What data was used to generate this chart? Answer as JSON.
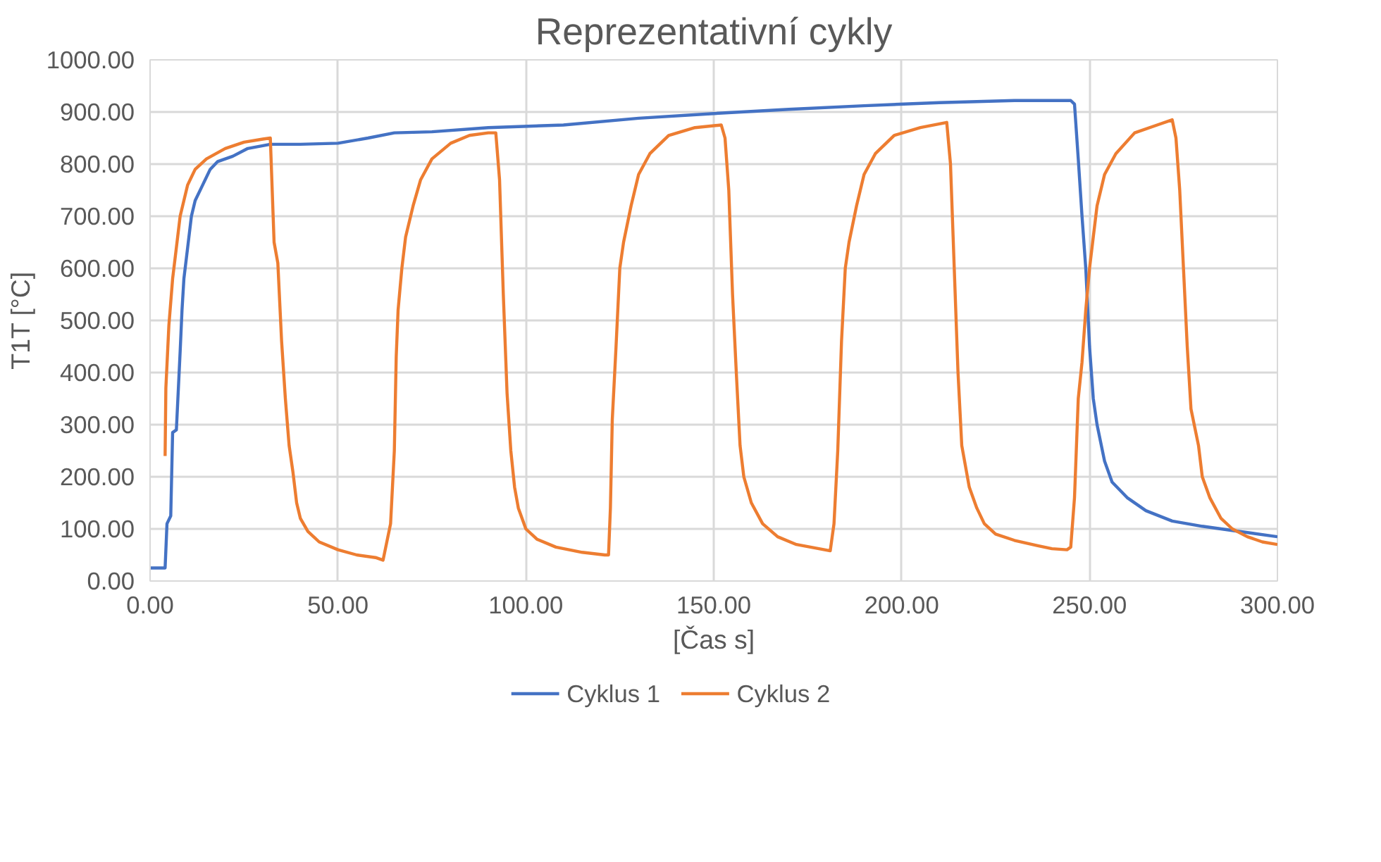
{
  "chart_data": {
    "type": "line",
    "title": "Reprezentativní cykly",
    "xlabel": "[Čas s]",
    "ylabel": "T1T [°C]",
    "xlim": [
      0,
      300
    ],
    "ylim": [
      0,
      1000
    ],
    "xticks": [
      {
        "value": 0,
        "label": "0.00"
      },
      {
        "value": 50,
        "label": "50.00"
      },
      {
        "value": 100,
        "label": "100.00"
      },
      {
        "value": 150,
        "label": "150.00"
      },
      {
        "value": 200,
        "label": "200.00"
      },
      {
        "value": 250,
        "label": "250.00"
      },
      {
        "value": 300,
        "label": "300.00"
      }
    ],
    "yticks": [
      {
        "value": 0,
        "label": "0.00"
      },
      {
        "value": 100,
        "label": "100.00"
      },
      {
        "value": 200,
        "label": "200.00"
      },
      {
        "value": 300,
        "label": "300.00"
      },
      {
        "value": 400,
        "label": "400.00"
      },
      {
        "value": 500,
        "label": "500.00"
      },
      {
        "value": 600,
        "label": "600.00"
      },
      {
        "value": 700,
        "label": "700.00"
      },
      {
        "value": 800,
        "label": "800.00"
      },
      {
        "value": 900,
        "label": "900.00"
      },
      {
        "value": 1000,
        "label": "1000.00"
      }
    ],
    "grid": true,
    "legend": "bottom",
    "series": [
      {
        "name": "Cyklus 1",
        "color": "#4472c4",
        "x": [
          0,
          4,
          4.5,
          5.5,
          6,
          7,
          8,
          8.5,
          9,
          10,
          11,
          12,
          14,
          16,
          18,
          22,
          26,
          32,
          40,
          50,
          58,
          65,
          75,
          90,
          110,
          130,
          150,
          170,
          190,
          210,
          230,
          245,
          246,
          247,
          248,
          249,
          250,
          251,
          252,
          254,
          256,
          260,
          265,
          272,
          280,
          290,
          300
        ],
        "values": [
          25,
          25,
          110,
          125,
          285,
          290,
          440,
          520,
          580,
          640,
          700,
          730,
          760,
          790,
          805,
          815,
          830,
          838,
          838,
          840,
          850,
          860,
          862,
          870,
          875,
          888,
          897,
          905,
          912,
          918,
          922,
          922,
          915,
          810,
          700,
          600,
          450,
          350,
          300,
          230,
          190,
          160,
          135,
          115,
          105,
          95,
          85
        ]
      },
      {
        "name": "Cyklus 2",
        "color": "#ed7d31",
        "x": [
          4,
          4.2,
          5,
          6,
          7,
          8,
          9,
          10,
          12,
          15,
          20,
          25,
          30,
          32,
          33,
          34,
          35,
          36,
          37,
          38,
          39,
          40,
          42,
          45,
          50,
          55,
          60,
          62,
          64,
          65,
          65.5,
          66,
          67,
          68,
          70,
          72,
          75,
          80,
          85,
          90,
          92,
          93,
          94,
          95,
          96,
          97,
          98,
          100,
          103,
          108,
          115,
          121,
          122,
          122.5,
          123,
          124,
          125,
          126,
          128,
          130,
          133,
          138,
          145,
          152,
          153,
          154,
          155,
          156,
          157,
          158,
          160,
          163,
          167,
          172,
          178,
          181,
          182,
          183,
          184,
          185,
          186,
          188,
          190,
          193,
          198,
          205,
          212,
          213,
          214,
          215,
          216,
          218,
          220,
          222,
          225,
          230,
          236,
          240,
          244,
          245,
          246,
          247,
          248,
          249,
          250,
          251,
          252,
          254,
          257,
          262,
          268,
          272,
          273,
          274,
          275,
          276,
          277,
          279,
          280,
          282,
          285,
          288,
          292,
          296,
          300
        ],
        "values": [
          240,
          370,
          490,
          580,
          640,
          700,
          730,
          760,
          790,
          810,
          830,
          842,
          848,
          850,
          650,
          610,
          460,
          350,
          260,
          210,
          150,
          120,
          95,
          75,
          60,
          50,
          45,
          40,
          110,
          250,
          430,
          520,
          600,
          660,
          720,
          770,
          810,
          840,
          855,
          860,
          860,
          770,
          550,
          360,
          250,
          180,
          140,
          100,
          80,
          65,
          55,
          50,
          50,
          140,
          310,
          450,
          600,
          650,
          720,
          780,
          820,
          855,
          870,
          875,
          850,
          750,
          550,
          400,
          260,
          200,
          150,
          110,
          85,
          70,
          62,
          58,
          110,
          250,
          460,
          600,
          650,
          720,
          780,
          820,
          855,
          870,
          880,
          800,
          600,
          400,
          260,
          180,
          140,
          110,
          90,
          78,
          68,
          62,
          60,
          65,
          160,
          350,
          420,
          520,
          600,
          660,
          720,
          780,
          820,
          860,
          875,
          885,
          850,
          750,
          600,
          450,
          330,
          260,
          200,
          160,
          120,
          100,
          85,
          75,
          70
        ]
      }
    ]
  }
}
